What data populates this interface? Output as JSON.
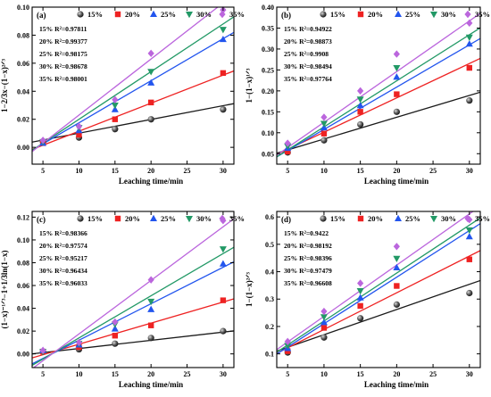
{
  "series_colors": [
    "#1a1a1a",
    "#ee2222",
    "#2255ee",
    "#229966",
    "#bb66dd"
  ],
  "marker_shapes": [
    "sphere",
    "square",
    "triangle-up",
    "triangle-down",
    "diamond"
  ],
  "chart_data": [
    {
      "type": "scatter",
      "panel": "(a)",
      "ylabel": "1−2/3x−(1−x)²ᐟ³",
      "xlabel": "Leaching time/min",
      "xlim": [
        3.5,
        31.5
      ],
      "ylim": [
        -0.012,
        0.1
      ],
      "xticks": [
        "5",
        "10",
        "15",
        "20",
        "25",
        "30"
      ],
      "yticks": [
        "0.00",
        "0.02",
        "0.04",
        "0.06",
        "0.08",
        "0.10"
      ],
      "x": [
        5,
        10,
        15,
        20,
        30
      ],
      "series": [
        {
          "name": "15%",
          "values": [
            0.004,
            0.007,
            0.013,
            0.02,
            0.027
          ],
          "fit": [
            0.0003,
            0.00098
          ],
          "r2": "15% R²=0.97811"
        },
        {
          "name": "20%",
          "values": [
            0.003,
            0.009,
            0.02,
            0.032,
            0.053
          ],
          "fit": [
            -0.0085,
            0.002
          ],
          "r2": "20% R²=0.99377"
        },
        {
          "name": "25%",
          "values": [
            0.003,
            0.012,
            0.027,
            0.046,
            0.077
          ],
          "fit": [
            -0.0125,
            0.003
          ],
          "r2": "25% R²=0.98175"
        },
        {
          "name": "30%",
          "values": [
            0.004,
            0.014,
            0.03,
            0.054,
            0.084
          ],
          "fit": [
            -0.014,
            0.0034
          ],
          "r2": "30% R²=0.98678"
        },
        {
          "name": "35%",
          "values": [
            0.005,
            0.015,
            0.034,
            0.067,
            0.098
          ],
          "fit": [
            -0.017,
            0.004
          ],
          "r2": "35% R²=0.98001"
        }
      ]
    },
    {
      "type": "scatter",
      "panel": "(b)",
      "ylabel": "1−(1−x)¹ᐟ³",
      "xlabel": "Leaching time/min",
      "xlim": [
        3.5,
        31.5
      ],
      "ylim": [
        0.025,
        0.4
      ],
      "xticks": [
        "5",
        "10",
        "15",
        "20",
        "25",
        "30"
      ],
      "yticks": [
        "0.05",
        "0.10",
        "0.15",
        "0.20",
        "0.25",
        "0.30",
        "0.35",
        "0.40"
      ],
      "x": [
        5,
        10,
        15,
        20,
        30
      ],
      "series": [
        {
          "name": "15%",
          "values": [
            0.053,
            0.082,
            0.12,
            0.15,
            0.177
          ],
          "fit": [
            0.033,
            0.0052
          ],
          "r2": "15% R²=0.94922"
        },
        {
          "name": "20%",
          "values": [
            0.055,
            0.098,
            0.15,
            0.192,
            0.255
          ],
          "fit": [
            0.0193,
            0.0082
          ],
          "r2": "20% R²=0.98873"
        },
        {
          "name": "25%",
          "values": [
            0.063,
            0.112,
            0.165,
            0.233,
            0.312
          ],
          "fit": [
            0.007,
            0.0101
          ],
          "r2": "25% R²=0.9908"
        },
        {
          "name": "30%",
          "values": [
            0.068,
            0.122,
            0.18,
            0.255,
            0.328
          ],
          "fit": [
            0.004,
            0.011
          ],
          "r2": "30% R²=0.98494"
        },
        {
          "name": "35%",
          "values": [
            0.075,
            0.137,
            0.2,
            0.288,
            0.362
          ],
          "fit": [
            0.004,
            0.0121
          ],
          "r2": "35% R²=0.97764"
        }
      ]
    },
    {
      "type": "scatter",
      "panel": "(c)",
      "ylabel": "(1−x)⁻¹ᐟ³−1+1/3ln(1−x)",
      "xlabel": "Leaching time/min",
      "xlim": [
        3.5,
        31.5
      ],
      "ylim": [
        -0.012,
        0.125
      ],
      "xticks": [
        "5",
        "10",
        "15",
        "20",
        "25",
        "30"
      ],
      "yticks": [
        "0.00",
        "0.02",
        "0.04",
        "0.06",
        "0.08",
        "0.10",
        "0.12"
      ],
      "x": [
        5,
        10,
        15,
        20,
        30
      ],
      "series": [
        {
          "name": "15%",
          "values": [
            0.002,
            0.004,
            0.009,
            0.014,
            0.02
          ],
          "fit": [
            -0.0025,
            0.00072
          ],
          "r2": "15% R²=0.98366"
        },
        {
          "name": "20%",
          "values": [
            0.002,
            0.006,
            0.016,
            0.025,
            0.047
          ],
          "fit": [
            -0.01,
            0.00185
          ],
          "r2": "20% R²=0.97574"
        },
        {
          "name": "25%",
          "values": [
            0.003,
            0.008,
            0.022,
            0.039,
            0.079
          ],
          "fit": [
            -0.02,
            0.0032
          ],
          "r2": "25% R²=0.95217"
        },
        {
          "name": "30%",
          "values": [
            0.002,
            0.009,
            0.026,
            0.046,
            0.092
          ],
          "fit": [
            -0.023,
            0.0037
          ],
          "r2": "30% R²=0.96434"
        },
        {
          "name": "35%",
          "values": [
            0.003,
            0.01,
            0.028,
            0.065,
            0.117
          ],
          "fit": [
            -0.0295,
            0.0047
          ],
          "r2": "35% R²=0.96033"
        }
      ]
    },
    {
      "type": "scatter",
      "panel": "(d)",
      "ylabel": "1−(1−x)²ᐟ³",
      "xlabel": "Leaching time/min",
      "xlim": [
        3.5,
        31.5
      ],
      "ylim": [
        0.05,
        0.62
      ],
      "xticks": [
        "5",
        "10",
        "15",
        "20",
        "25",
        "30"
      ],
      "yticks": [
        "0.1",
        "0.2",
        "0.3",
        "0.4",
        "0.5",
        "0.6"
      ],
      "x": [
        5,
        10,
        15,
        20,
        30
      ],
      "series": [
        {
          "name": "15%",
          "values": [
            0.105,
            0.16,
            0.23,
            0.28,
            0.322
          ],
          "fit": [
            0.078,
            0.0092
          ],
          "r2": "15% R²=0.9422"
        },
        {
          "name": "20%",
          "values": [
            0.11,
            0.195,
            0.275,
            0.348,
            0.445
          ],
          "fit": [
            0.055,
            0.0134
          ],
          "r2": "20% R²=0.98192"
        },
        {
          "name": "25%",
          "values": [
            0.12,
            0.215,
            0.305,
            0.415,
            0.528
          ],
          "fit": [
            0.04,
            0.017
          ],
          "r2": "25% R²=0.98396"
        },
        {
          "name": "30%",
          "values": [
            0.13,
            0.235,
            0.33,
            0.448,
            0.552
          ],
          "fit": [
            0.045,
            0.0175
          ],
          "r2": "30% R²=0.97479"
        },
        {
          "name": "35%",
          "values": [
            0.145,
            0.255,
            0.358,
            0.492,
            0.59
          ],
          "fit": [
            0.05,
            0.0187
          ],
          "r2": "35% R²=0.96608"
        }
      ]
    }
  ]
}
